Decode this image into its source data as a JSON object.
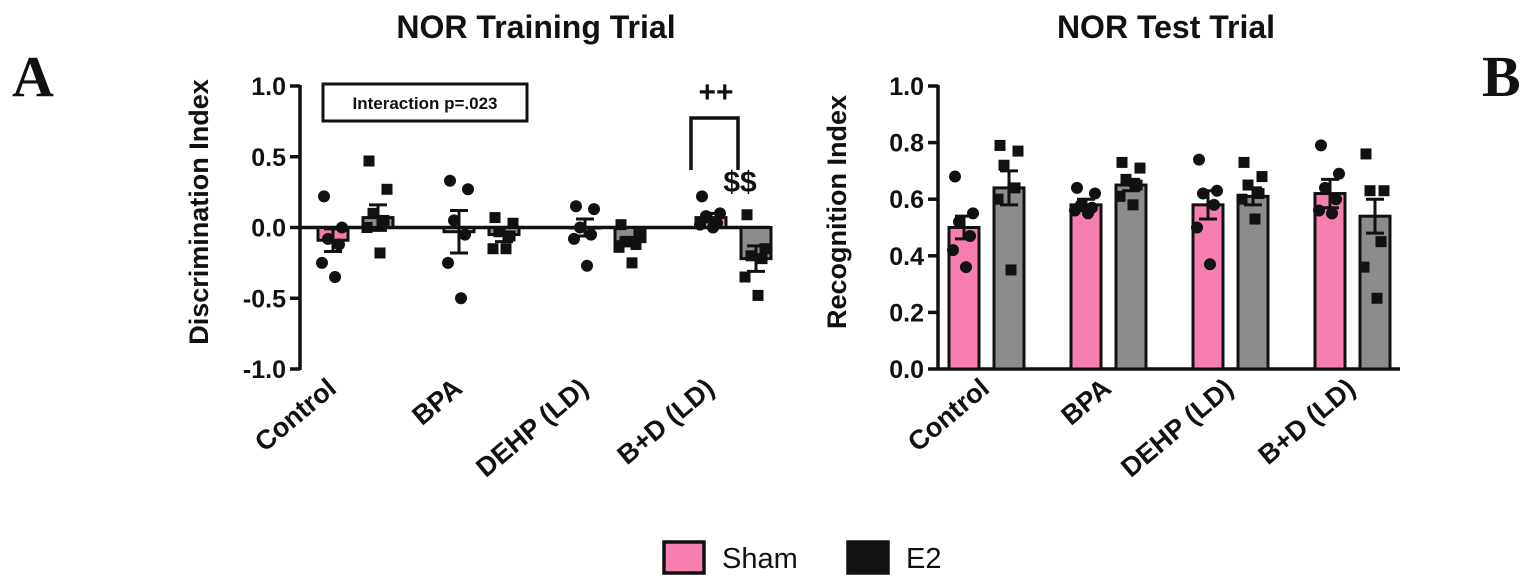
{
  "figure": {
    "panel_a_letter": "A",
    "panel_b_letter": "B"
  },
  "legend": {
    "items": [
      {
        "label": "Sham",
        "color": "#f77fb0"
      },
      {
        "label": "E2",
        "color": "#111111"
      }
    ]
  },
  "colors": {
    "sham_bar": "#f77fb0",
    "e2_bar": "#8c8c8c",
    "ink": "#111111"
  },
  "chart_data": [
    {
      "type": "bar",
      "title": "NOR Training Trial",
      "xlabel": "",
      "ylabel": "Discrimination Index",
      "ylim": [
        -1.0,
        1.0
      ],
      "yticks": [
        1.0,
        0.5,
        0.0,
        -0.5,
        -1.0
      ],
      "ytick_labels": [
        "1.0",
        "0.5",
        "0.0",
        "-0.5",
        "-1.0"
      ],
      "categories": [
        "Control",
        "BPA",
        "DEHP (LD)",
        "B+D (LD)"
      ],
      "series": [
        {
          "name": "Sham",
          "values": [
            -0.09,
            -0.03,
            0.0,
            0.07
          ],
          "errors": [
            0.08,
            0.15,
            0.06,
            0.03
          ],
          "points": [
            [
              0.22,
              0.0,
              -0.08,
              -0.12,
              -0.25,
              -0.35
            ],
            [
              0.33,
              0.27,
              0.05,
              -0.05,
              -0.25,
              -0.5
            ],
            [
              0.15,
              0.13,
              0.0,
              -0.05,
              -0.08,
              -0.27
            ],
            [
              0.22,
              0.1,
              0.08,
              0.03,
              0.02,
              0.0
            ]
          ]
        },
        {
          "name": "E2",
          "values": [
            0.07,
            -0.05,
            -0.1,
            -0.22
          ],
          "errors": [
            0.09,
            0.05,
            0.03,
            0.09
          ],
          "points": [
            [
              0.47,
              0.27,
              0.1,
              0.05,
              0.0,
              -0.18
            ],
            [
              0.07,
              0.03,
              -0.03,
              -0.06,
              -0.15,
              -0.15
            ],
            [
              0.02,
              -0.05,
              -0.1,
              -0.12,
              -0.14,
              -0.25
            ],
            [
              0.09,
              -0.15,
              -0.2,
              -0.22,
              -0.35,
              -0.48
            ]
          ]
        }
      ],
      "annotations": [
        {
          "text": "Interaction p=.023",
          "kind": "box"
        },
        {
          "text": "++",
          "kind": "bracket",
          "category": "B+D (LD)"
        },
        {
          "text": "$$",
          "kind": "label",
          "category": "B+D (LD)",
          "series": "E2"
        }
      ]
    },
    {
      "type": "bar",
      "title": "NOR Test Trial",
      "xlabel": "",
      "ylabel": "Recognition Index",
      "ylim": [
        0.0,
        1.0
      ],
      "yticks": [
        1.0,
        0.8,
        0.6,
        0.4,
        0.2,
        0.0
      ],
      "ytick_labels": [
        "1.0",
        "0.8",
        "0.6",
        "0.4",
        "0.2",
        "0.0"
      ],
      "categories": [
        "Control",
        "BPA",
        "DEHP (LD)",
        "B+D (LD)"
      ],
      "series": [
        {
          "name": "Sham",
          "values": [
            0.5,
            0.58,
            0.58,
            0.62
          ],
          "errors": [
            0.04,
            0.02,
            0.05,
            0.05
          ],
          "points": [
            [
              0.68,
              0.55,
              0.52,
              0.47,
              0.42,
              0.36
            ],
            [
              0.64,
              0.62,
              0.58,
              0.57,
              0.56,
              0.55
            ],
            [
              0.74,
              0.63,
              0.62,
              0.58,
              0.5,
              0.37
            ],
            [
              0.79,
              0.69,
              0.64,
              0.6,
              0.56,
              0.55
            ]
          ]
        },
        {
          "name": "E2",
          "values": [
            0.64,
            0.65,
            0.61,
            0.54
          ],
          "errors": [
            0.06,
            0.02,
            0.03,
            0.06
          ],
          "points": [
            [
              0.79,
              0.77,
              0.72,
              0.64,
              0.6,
              0.35
            ],
            [
              0.73,
              0.71,
              0.67,
              0.65,
              0.61,
              0.58
            ],
            [
              0.73,
              0.68,
              0.65,
              0.62,
              0.6,
              0.53
            ],
            [
              0.76,
              0.63,
              0.63,
              0.45,
              0.36,
              0.25
            ]
          ]
        }
      ],
      "annotations": []
    }
  ]
}
